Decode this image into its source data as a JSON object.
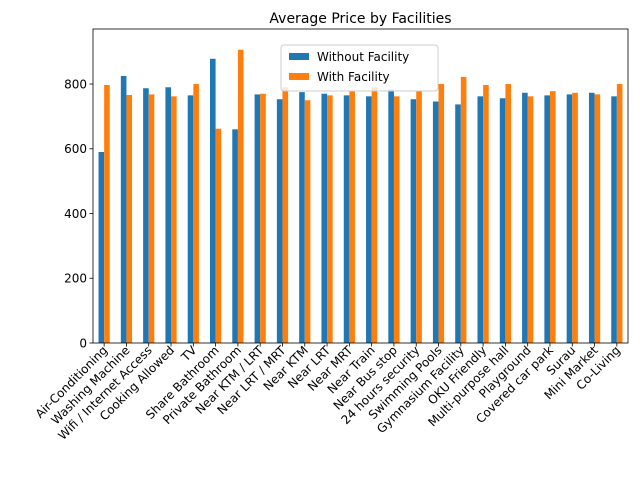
{
  "chart_data": {
    "type": "bar",
    "title": "Average Price by Facilities",
    "xlabel": "",
    "ylabel": "",
    "ylim": [
      0,
      970
    ],
    "yticks": [
      0,
      200,
      400,
      600,
      800
    ],
    "grid": false,
    "legend_position": "top-center",
    "categories": [
      "Air-Conditioning",
      "Washing Machine",
      "Wifi / Internet Access",
      "Cooking Allowed",
      "TV",
      "Share Bathroom",
      "Private Bathroom",
      "Near KTM / LRT",
      "Near LRT / MRT",
      "Near KTM",
      "Near LRT",
      "Near MRT",
      "Near Train",
      "Near Bus stop",
      "24 hours security",
      "Swimming Pools",
      "Gymnasium Facility",
      "OKU Friendly",
      "Multi-purpose hall",
      "Playground",
      "Covered car park",
      "Surau",
      "Mini Market",
      "Co-Living"
    ],
    "series": [
      {
        "name": "Without Facility",
        "color": "#1f77b4",
        "values": [
          590,
          825,
          787,
          790,
          765,
          878,
          660,
          768,
          753,
          775,
          770,
          765,
          762,
          783,
          753,
          746,
          737,
          762,
          756,
          773,
          765,
          768,
          773,
          762
        ]
      },
      {
        "name": "With Facility",
        "color": "#ff7f0e",
        "values": [
          797,
          766,
          768,
          762,
          800,
          662,
          906,
          770,
          790,
          750,
          765,
          779,
          790,
          762,
          779,
          800,
          822,
          797,
          800,
          762,
          778,
          773,
          768,
          800
        ]
      }
    ]
  }
}
